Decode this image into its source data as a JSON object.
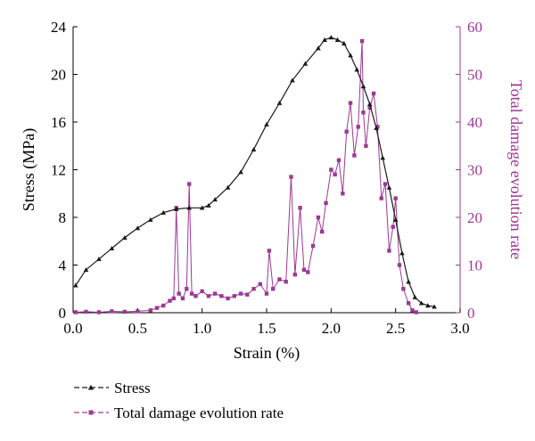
{
  "chart_data": {
    "type": "line",
    "x_axis": {
      "label": "Strain (%)",
      "range": [
        0.0,
        3.0
      ],
      "ticks": [
        "0.0",
        "0.5",
        "1.0",
        "1.5",
        "2.0",
        "2.5",
        "3.0"
      ]
    },
    "y_axis_left": {
      "label": "Stress (MPa)",
      "range": [
        0,
        24
      ],
      "ticks": [
        "0",
        "4",
        "8",
        "12",
        "16",
        "20",
        "24"
      ]
    },
    "y_axis_right": {
      "label": "Total damage evolution rate",
      "range": [
        0,
        60
      ],
      "ticks": [
        "0",
        "10",
        "20",
        "30",
        "40",
        "50",
        "60"
      ]
    },
    "grid": false,
    "legend_position": "bottom-left",
    "colors": {
      "stress": "#1a1a1a",
      "damage": "#9b3a93"
    },
    "series": [
      {
        "name": "Stress",
        "axis": "left",
        "marker": "triangle",
        "x": [
          0.02,
          0.1,
          0.2,
          0.3,
          0.4,
          0.5,
          0.6,
          0.7,
          0.8,
          0.9,
          1.0,
          1.05,
          1.1,
          1.2,
          1.3,
          1.4,
          1.5,
          1.6,
          1.7,
          1.8,
          1.9,
          1.95,
          2.0,
          2.05,
          2.1,
          2.15,
          2.2,
          2.25,
          2.3,
          2.35,
          2.4,
          2.45,
          2.5,
          2.55,
          2.6,
          2.65,
          2.7,
          2.75,
          2.8
        ],
        "y": [
          2.3,
          3.6,
          4.5,
          5.4,
          6.3,
          7.1,
          7.8,
          8.4,
          8.7,
          8.8,
          8.8,
          9.0,
          9.5,
          10.5,
          11.8,
          13.7,
          15.8,
          17.6,
          19.5,
          20.9,
          22.2,
          22.9,
          23.1,
          22.9,
          22.6,
          21.6,
          20.4,
          19.0,
          17.5,
          15.5,
          13.0,
          10.5,
          7.8,
          5.0,
          2.6,
          1.3,
          0.8,
          0.6,
          0.5
        ]
      },
      {
        "name": "Total damage evolution rate",
        "axis": "right",
        "marker": "square",
        "x": [
          0.02,
          0.1,
          0.2,
          0.3,
          0.4,
          0.5,
          0.6,
          0.65,
          0.7,
          0.75,
          0.78,
          0.8,
          0.82,
          0.85,
          0.88,
          0.9,
          0.92,
          0.95,
          1.0,
          1.05,
          1.1,
          1.15,
          1.2,
          1.25,
          1.3,
          1.35,
          1.4,
          1.45,
          1.5,
          1.52,
          1.55,
          1.6,
          1.65,
          1.69,
          1.72,
          1.76,
          1.79,
          1.82,
          1.86,
          1.9,
          1.93,
          1.96,
          2.0,
          2.03,
          2.06,
          2.09,
          2.12,
          2.15,
          2.18,
          2.21,
          2.24,
          2.25,
          2.27,
          2.3,
          2.33,
          2.36,
          2.39,
          2.42,
          2.45,
          2.48,
          2.5,
          2.53,
          2.56,
          2.6,
          2.63,
          2.66
        ],
        "y": [
          0.1,
          0.2,
          0.1,
          0.3,
          0.2,
          0.3,
          0.5,
          1.0,
          1.5,
          2.5,
          3.0,
          22.0,
          4.0,
          3.0,
          5.0,
          27.0,
          4.0,
          3.5,
          4.5,
          3.5,
          4.0,
          3.5,
          3.0,
          3.5,
          4.0,
          3.8,
          5.0,
          6.0,
          4.0,
          13.0,
          5.0,
          7.0,
          6.5,
          28.5,
          8.0,
          22.0,
          9.0,
          8.5,
          14.0,
          20.0,
          17.0,
          23.0,
          30.0,
          29.0,
          32.0,
          25.0,
          38.0,
          44.0,
          33.0,
          39.0,
          57.0,
          42.0,
          35.0,
          43.0,
          46.0,
          39.0,
          24.0,
          27.0,
          13.0,
          18.0,
          24.0,
          10.0,
          5.0,
          2.0,
          0.5,
          0.1
        ]
      }
    ]
  }
}
